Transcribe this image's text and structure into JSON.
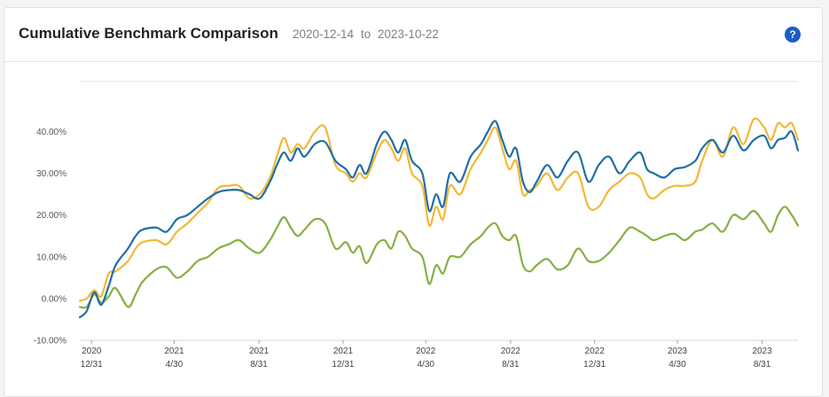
{
  "header": {
    "title": "Cumulative Benchmark Comparison",
    "range_start": "2020-12-14",
    "range_sep": "to",
    "range_end": "2023-10-22",
    "help_label": "?"
  },
  "colors": {
    "series_blue": "#1f6fa6",
    "series_gold": "#f2b836",
    "series_green": "#86b042",
    "help_button": "#1a5dc7"
  },
  "chart_data": {
    "type": "line",
    "title": "",
    "xlabel": "",
    "ylabel": "",
    "ylim": [
      -10,
      52
    ],
    "xlim": [
      "2020-12-14",
      "2023-10-22"
    ],
    "yticks": [
      -10,
      0,
      10,
      20,
      30,
      40
    ],
    "ytick_labels": [
      "-10.00%",
      "0.00%",
      "10.00%",
      "20.00%",
      "30.00%",
      "40.00%"
    ],
    "xticks": [
      {
        "date": "2020-12-31",
        "year": "2020",
        "md": "12/31"
      },
      {
        "date": "2021-04-30",
        "year": "2021",
        "md": "4/30"
      },
      {
        "date": "2021-08-31",
        "year": "2021",
        "md": "8/31"
      },
      {
        "date": "2021-12-31",
        "year": "2021",
        "md": "12/31"
      },
      {
        "date": "2022-04-30",
        "year": "2022",
        "md": "4/30"
      },
      {
        "date": "2022-08-31",
        "year": "2022",
        "md": "8/31"
      },
      {
        "date": "2022-12-31",
        "year": "2022",
        "md": "12/31"
      },
      {
        "date": "2023-04-30",
        "year": "2023",
        "md": "4/30"
      },
      {
        "date": "2023-08-31",
        "year": "2023",
        "md": "8/31"
      }
    ],
    "grid": "horizontal top line only",
    "legend": "none",
    "series": [
      {
        "color": "#1f6fa6",
        "points": [
          [
            "2020-12-14",
            -4.5
          ],
          [
            "2020-12-24",
            -3.0
          ],
          [
            "2021-01-04",
            1.5
          ],
          [
            "2021-01-14",
            -1.5
          ],
          [
            "2021-01-25",
            3.0
          ],
          [
            "2021-02-04",
            8.0
          ],
          [
            "2021-02-22",
            12.0
          ],
          [
            "2021-03-05",
            15.0
          ],
          [
            "2021-03-15",
            16.5
          ],
          [
            "2021-04-04",
            17.0
          ],
          [
            "2021-04-19",
            16.0
          ],
          [
            "2021-05-04",
            19.0
          ],
          [
            "2021-05-19",
            20.0
          ],
          [
            "2021-06-03",
            22.0
          ],
          [
            "2021-06-18",
            24.0
          ],
          [
            "2021-07-03",
            25.5
          ],
          [
            "2021-07-18",
            26.0
          ],
          [
            "2021-08-02",
            26.0
          ],
          [
            "2021-08-17",
            25.0
          ],
          [
            "2021-09-01",
            24.0
          ],
          [
            "2021-09-16",
            28.0
          ],
          [
            "2021-09-26",
            32.0
          ],
          [
            "2021-10-06",
            35.0
          ],
          [
            "2021-10-16",
            33.0
          ],
          [
            "2021-10-26",
            36.0
          ],
          [
            "2021-11-05",
            34.0
          ],
          [
            "2021-11-20",
            37.0
          ],
          [
            "2021-12-05",
            37.5
          ],
          [
            "2021-12-20",
            33.0
          ],
          [
            "2022-01-04",
            31.0
          ],
          [
            "2022-01-14",
            29.0
          ],
          [
            "2022-01-24",
            32.0
          ],
          [
            "2022-02-03",
            30.0
          ],
          [
            "2022-02-18",
            37.0
          ],
          [
            "2022-03-01",
            40.0
          ],
          [
            "2022-03-11",
            38.0
          ],
          [
            "2022-03-21",
            35.0
          ],
          [
            "2022-03-31",
            38.0
          ],
          [
            "2022-04-10",
            33.0
          ],
          [
            "2022-04-25",
            30.0
          ],
          [
            "2022-05-05",
            21.0
          ],
          [
            "2022-05-15",
            25.0
          ],
          [
            "2022-05-25",
            22.0
          ],
          [
            "2022-06-04",
            30.0
          ],
          [
            "2022-06-19",
            28.0
          ],
          [
            "2022-07-04",
            34.0
          ],
          [
            "2022-07-19",
            37.0
          ],
          [
            "2022-07-29",
            40.0
          ],
          [
            "2022-08-09",
            42.5
          ],
          [
            "2022-08-19",
            38.0
          ],
          [
            "2022-08-29",
            34.0
          ],
          [
            "2022-09-08",
            36.0
          ],
          [
            "2022-09-18",
            28.0
          ],
          [
            "2022-09-28",
            25.5
          ],
          [
            "2022-10-08",
            28.0
          ],
          [
            "2022-10-23",
            32.0
          ],
          [
            "2022-11-07",
            29.0
          ],
          [
            "2022-11-22",
            33.0
          ],
          [
            "2022-12-07",
            35.0
          ],
          [
            "2022-12-22",
            28.0
          ],
          [
            "2023-01-06",
            32.0
          ],
          [
            "2023-01-21",
            34.0
          ],
          [
            "2023-02-05",
            30.0
          ],
          [
            "2023-02-20",
            33.0
          ],
          [
            "2023-03-07",
            35.0
          ],
          [
            "2023-03-17",
            31.0
          ],
          [
            "2023-03-27",
            30.0
          ],
          [
            "2023-04-11",
            29.0
          ],
          [
            "2023-04-26",
            31.0
          ],
          [
            "2023-05-11",
            31.5
          ],
          [
            "2023-05-26",
            33.0
          ],
          [
            "2023-06-05",
            36.0
          ],
          [
            "2023-06-20",
            38.0
          ],
          [
            "2023-07-05",
            35.0
          ],
          [
            "2023-07-20",
            39.0
          ],
          [
            "2023-08-04",
            35.5
          ],
          [
            "2023-08-19",
            38.0
          ],
          [
            "2023-09-03",
            39.0
          ],
          [
            "2023-09-13",
            36.0
          ],
          [
            "2023-09-23",
            38.0
          ],
          [
            "2023-10-03",
            38.5
          ],
          [
            "2023-10-13",
            40.0
          ],
          [
            "2023-10-22",
            35.5
          ]
        ]
      },
      {
        "color": "#f2b836",
        "points": [
          [
            "2020-12-14",
            -0.5
          ],
          [
            "2020-12-24",
            0.0
          ],
          [
            "2021-01-04",
            2.0
          ],
          [
            "2021-01-14",
            0.5
          ],
          [
            "2021-01-25",
            6.0
          ],
          [
            "2021-02-04",
            6.5
          ],
          [
            "2021-02-22",
            9.0
          ],
          [
            "2021-03-05",
            12.0
          ],
          [
            "2021-03-15",
            13.5
          ],
          [
            "2021-04-04",
            14.0
          ],
          [
            "2021-04-19",
            13.0
          ],
          [
            "2021-05-04",
            16.0
          ],
          [
            "2021-05-19",
            18.0
          ],
          [
            "2021-06-03",
            20.5
          ],
          [
            "2021-06-18",
            23.0
          ],
          [
            "2021-07-03",
            26.5
          ],
          [
            "2021-07-18",
            27.0
          ],
          [
            "2021-08-02",
            27.0
          ],
          [
            "2021-08-17",
            24.0
          ],
          [
            "2021-09-01",
            25.0
          ],
          [
            "2021-09-16",
            29.0
          ],
          [
            "2021-09-26",
            34.0
          ],
          [
            "2021-10-06",
            38.5
          ],
          [
            "2021-10-16",
            35.0
          ],
          [
            "2021-10-26",
            37.0
          ],
          [
            "2021-11-05",
            36.0
          ],
          [
            "2021-11-20",
            40.0
          ],
          [
            "2021-12-05",
            41.0
          ],
          [
            "2021-12-20",
            32.0
          ],
          [
            "2022-01-04",
            30.0
          ],
          [
            "2022-01-14",
            28.0
          ],
          [
            "2022-01-24",
            30.0
          ],
          [
            "2022-02-03",
            29.0
          ],
          [
            "2022-02-18",
            35.0
          ],
          [
            "2022-03-01",
            38.0
          ],
          [
            "2022-03-11",
            36.0
          ],
          [
            "2022-03-21",
            33.0
          ],
          [
            "2022-03-31",
            36.0
          ],
          [
            "2022-04-10",
            30.0
          ],
          [
            "2022-04-25",
            27.0
          ],
          [
            "2022-05-05",
            17.5
          ],
          [
            "2022-05-15",
            22.0
          ],
          [
            "2022-05-25",
            19.0
          ],
          [
            "2022-06-04",
            27.0
          ],
          [
            "2022-06-19",
            25.0
          ],
          [
            "2022-07-04",
            31.0
          ],
          [
            "2022-07-19",
            35.0
          ],
          [
            "2022-07-29",
            38.0
          ],
          [
            "2022-08-09",
            41.0
          ],
          [
            "2022-08-19",
            36.0
          ],
          [
            "2022-08-29",
            31.0
          ],
          [
            "2022-09-08",
            33.0
          ],
          [
            "2022-09-18",
            25.0
          ],
          [
            "2022-09-28",
            26.0
          ],
          [
            "2022-10-08",
            27.0
          ],
          [
            "2022-10-23",
            30.0
          ],
          [
            "2022-11-07",
            26.0
          ],
          [
            "2022-11-22",
            29.0
          ],
          [
            "2022-12-07",
            30.0
          ],
          [
            "2022-12-22",
            22.0
          ],
          [
            "2023-01-06",
            22.0
          ],
          [
            "2023-01-21",
            26.0
          ],
          [
            "2023-02-05",
            28.0
          ],
          [
            "2023-02-20",
            30.0
          ],
          [
            "2023-03-07",
            29.0
          ],
          [
            "2023-03-17",
            25.0
          ],
          [
            "2023-03-27",
            24.0
          ],
          [
            "2023-04-11",
            26.0
          ],
          [
            "2023-04-26",
            27.0
          ],
          [
            "2023-05-11",
            27.0
          ],
          [
            "2023-05-26",
            28.0
          ],
          [
            "2023-06-05",
            33.0
          ],
          [
            "2023-06-20",
            38.0
          ],
          [
            "2023-07-05",
            34.0
          ],
          [
            "2023-07-20",
            41.0
          ],
          [
            "2023-08-04",
            37.0
          ],
          [
            "2023-08-19",
            43.0
          ],
          [
            "2023-09-03",
            41.0
          ],
          [
            "2023-09-13",
            38.0
          ],
          [
            "2023-09-23",
            42.0
          ],
          [
            "2023-10-03",
            41.0
          ],
          [
            "2023-10-13",
            42.0
          ],
          [
            "2023-10-22",
            38.0
          ]
        ]
      },
      {
        "color": "#86b042",
        "points": [
          [
            "2020-12-14",
            -2.0
          ],
          [
            "2020-12-24",
            -2.0
          ],
          [
            "2021-01-04",
            1.0
          ],
          [
            "2021-01-14",
            -1.0
          ],
          [
            "2021-01-25",
            0.5
          ],
          [
            "2021-02-04",
            2.5
          ],
          [
            "2021-02-22",
            -2.0
          ],
          [
            "2021-03-05",
            1.0
          ],
          [
            "2021-03-15",
            4.0
          ],
          [
            "2021-04-04",
            7.0
          ],
          [
            "2021-04-19",
            7.5
          ],
          [
            "2021-05-04",
            5.0
          ],
          [
            "2021-05-19",
            6.5
          ],
          [
            "2021-06-03",
            9.0
          ],
          [
            "2021-06-18",
            10.0
          ],
          [
            "2021-07-03",
            12.0
          ],
          [
            "2021-07-18",
            13.0
          ],
          [
            "2021-08-02",
            14.0
          ],
          [
            "2021-08-17",
            12.0
          ],
          [
            "2021-09-01",
            11.0
          ],
          [
            "2021-09-16",
            14.0
          ],
          [
            "2021-09-26",
            17.0
          ],
          [
            "2021-10-06",
            19.5
          ],
          [
            "2021-10-16",
            17.0
          ],
          [
            "2021-10-26",
            15.0
          ],
          [
            "2021-11-05",
            16.5
          ],
          [
            "2021-11-20",
            19.0
          ],
          [
            "2021-12-05",
            18.0
          ],
          [
            "2021-12-20",
            12.0
          ],
          [
            "2022-01-04",
            13.5
          ],
          [
            "2022-01-14",
            11.0
          ],
          [
            "2022-01-24",
            12.5
          ],
          [
            "2022-02-03",
            8.5
          ],
          [
            "2022-02-18",
            13.0
          ],
          [
            "2022-03-01",
            14.0
          ],
          [
            "2022-03-11",
            12.0
          ],
          [
            "2022-03-21",
            16.0
          ],
          [
            "2022-03-31",
            15.0
          ],
          [
            "2022-04-10",
            12.0
          ],
          [
            "2022-04-25",
            10.0
          ],
          [
            "2022-05-05",
            3.5
          ],
          [
            "2022-05-15",
            8.0
          ],
          [
            "2022-05-25",
            6.0
          ],
          [
            "2022-06-04",
            10.0
          ],
          [
            "2022-06-19",
            10.0
          ],
          [
            "2022-07-04",
            13.0
          ],
          [
            "2022-07-19",
            15.0
          ],
          [
            "2022-07-29",
            17.0
          ],
          [
            "2022-08-09",
            18.0
          ],
          [
            "2022-08-19",
            15.0
          ],
          [
            "2022-08-29",
            14.0
          ],
          [
            "2022-09-08",
            15.0
          ],
          [
            "2022-09-18",
            8.0
          ],
          [
            "2022-09-28",
            6.5
          ],
          [
            "2022-10-08",
            8.0
          ],
          [
            "2022-10-23",
            9.5
          ],
          [
            "2022-11-07",
            7.0
          ],
          [
            "2022-11-22",
            8.0
          ],
          [
            "2022-12-07",
            12.0
          ],
          [
            "2022-12-22",
            9.0
          ],
          [
            "2023-01-06",
            9.0
          ],
          [
            "2023-01-21",
            11.0
          ],
          [
            "2023-02-05",
            14.0
          ],
          [
            "2023-02-20",
            17.0
          ],
          [
            "2023-03-07",
            16.0
          ],
          [
            "2023-03-17",
            15.0
          ],
          [
            "2023-03-27",
            14.0
          ],
          [
            "2023-04-11",
            15.0
          ],
          [
            "2023-04-26",
            15.5
          ],
          [
            "2023-05-11",
            14.0
          ],
          [
            "2023-05-26",
            16.0
          ],
          [
            "2023-06-05",
            16.5
          ],
          [
            "2023-06-20",
            18.0
          ],
          [
            "2023-07-05",
            16.0
          ],
          [
            "2023-07-20",
            20.0
          ],
          [
            "2023-08-04",
            19.0
          ],
          [
            "2023-08-19",
            21.0
          ],
          [
            "2023-09-03",
            18.0
          ],
          [
            "2023-09-13",
            16.0
          ],
          [
            "2023-09-23",
            20.0
          ],
          [
            "2023-10-03",
            22.0
          ],
          [
            "2023-10-13",
            20.0
          ],
          [
            "2023-10-22",
            17.5
          ]
        ]
      }
    ]
  }
}
